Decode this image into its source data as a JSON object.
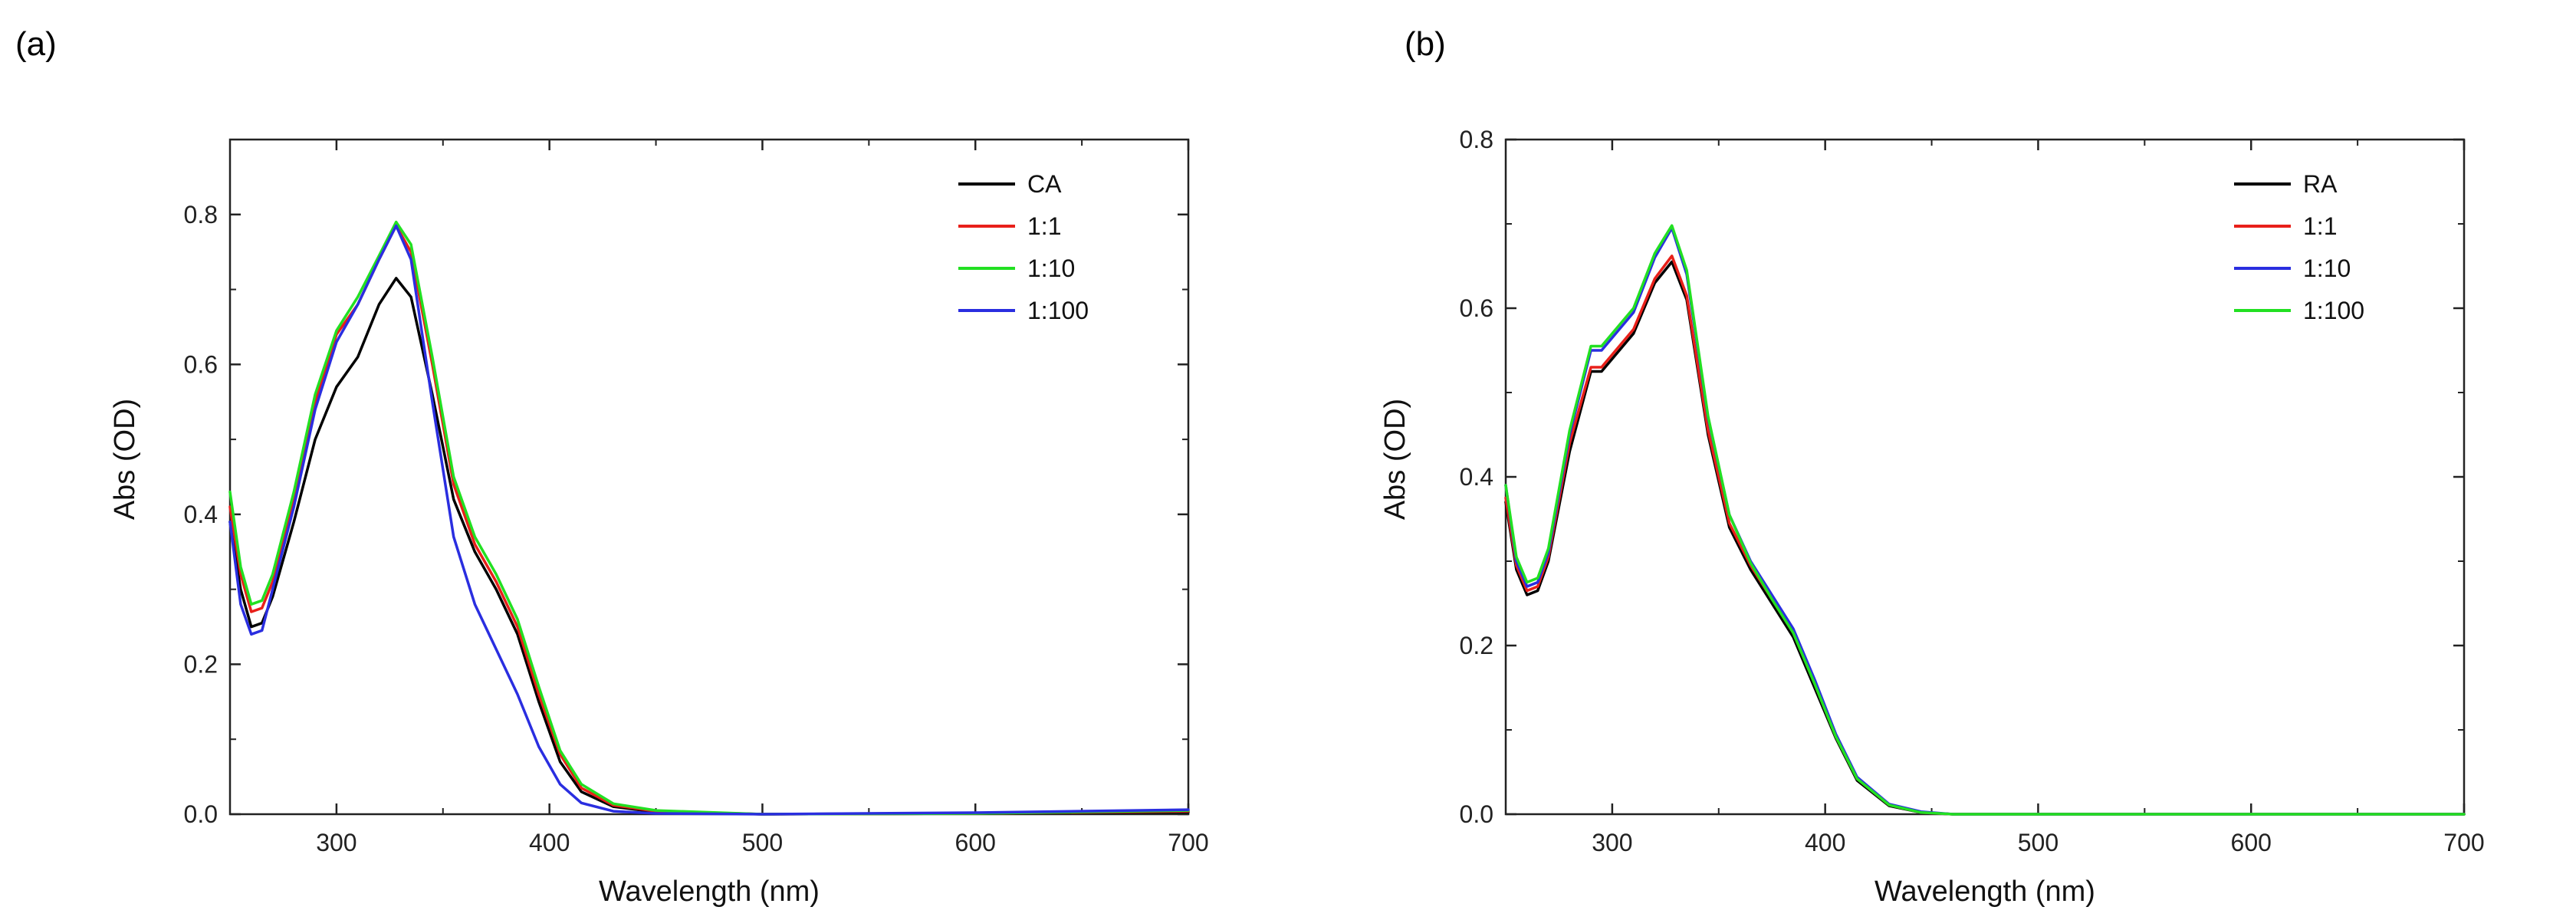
{
  "chart_data": [
    {
      "type": "line",
      "panel_label": "(a)",
      "xlabel": "Wavelength (nm)",
      "ylabel": "Abs (OD)",
      "xlim": [
        250,
        700
      ],
      "ylim": [
        0,
        0.9
      ],
      "xticks": [
        300,
        400,
        500,
        600,
        700
      ],
      "xtick_labels": [
        "300",
        "400",
        "500",
        "600",
        "700"
      ],
      "yticks": [
        0.0,
        0.2,
        0.4,
        0.6,
        0.8
      ],
      "ytick_labels": [
        "0.0",
        "0.2",
        "0.4",
        "0.6",
        "0.8"
      ],
      "grid": false,
      "legend_position": "top-right",
      "series": [
        {
          "name": "CA",
          "color": "#000000",
          "points": [
            [
              250,
              0.39
            ],
            [
              255,
              0.3
            ],
            [
              260,
              0.25
            ],
            [
              265,
              0.255
            ],
            [
              270,
              0.29
            ],
            [
              280,
              0.39
            ],
            [
              290,
              0.5
            ],
            [
              300,
              0.57
            ],
            [
              310,
              0.61
            ],
            [
              320,
              0.68
            ],
            [
              328,
              0.715
            ],
            [
              335,
              0.69
            ],
            [
              345,
              0.56
            ],
            [
              355,
              0.42
            ],
            [
              365,
              0.35
            ],
            [
              375,
              0.3
            ],
            [
              385,
              0.24
            ],
            [
              395,
              0.15
            ],
            [
              405,
              0.07
            ],
            [
              415,
              0.03
            ],
            [
              430,
              0.01
            ],
            [
              450,
              0.003
            ],
            [
              500,
              0.0
            ],
            [
              600,
              0.001
            ],
            [
              700,
              0.003
            ]
          ]
        },
        {
          "name": "1:1",
          "color": "#e8201a",
          "points": [
            [
              250,
              0.41
            ],
            [
              255,
              0.32
            ],
            [
              260,
              0.27
            ],
            [
              265,
              0.275
            ],
            [
              270,
              0.31
            ],
            [
              280,
              0.42
            ],
            [
              290,
              0.55
            ],
            [
              300,
              0.64
            ],
            [
              310,
              0.68
            ],
            [
              320,
              0.74
            ],
            [
              328,
              0.785
            ],
            [
              335,
              0.75
            ],
            [
              345,
              0.6
            ],
            [
              355,
              0.44
            ],
            [
              365,
              0.36
            ],
            [
              375,
              0.31
            ],
            [
              385,
              0.25
            ],
            [
              395,
              0.16
            ],
            [
              405,
              0.08
            ],
            [
              415,
              0.035
            ],
            [
              430,
              0.012
            ],
            [
              450,
              0.004
            ],
            [
              500,
              0.0
            ],
            [
              600,
              0.001
            ],
            [
              700,
              0.004
            ]
          ]
        },
        {
          "name": "1:10",
          "color": "#22e022",
          "points": [
            [
              250,
              0.43
            ],
            [
              255,
              0.33
            ],
            [
              260,
              0.28
            ],
            [
              265,
              0.285
            ],
            [
              270,
              0.32
            ],
            [
              280,
              0.43
            ],
            [
              290,
              0.56
            ],
            [
              300,
              0.645
            ],
            [
              310,
              0.69
            ],
            [
              320,
              0.745
            ],
            [
              328,
              0.79
            ],
            [
              335,
              0.76
            ],
            [
              345,
              0.61
            ],
            [
              355,
              0.45
            ],
            [
              365,
              0.37
            ],
            [
              375,
              0.32
            ],
            [
              385,
              0.26
            ],
            [
              395,
              0.17
            ],
            [
              405,
              0.085
            ],
            [
              415,
              0.04
            ],
            [
              430,
              0.014
            ],
            [
              450,
              0.005
            ],
            [
              500,
              0.0
            ],
            [
              600,
              0.001
            ],
            [
              700,
              0.005
            ]
          ]
        },
        {
          "name": "1:100",
          "color": "#2a2ee0",
          "points": [
            [
              250,
              0.39
            ],
            [
              255,
              0.28
            ],
            [
              260,
              0.24
            ],
            [
              265,
              0.245
            ],
            [
              270,
              0.3
            ],
            [
              280,
              0.41
            ],
            [
              290,
              0.54
            ],
            [
              300,
              0.63
            ],
            [
              310,
              0.68
            ],
            [
              320,
              0.74
            ],
            [
              328,
              0.785
            ],
            [
              335,
              0.74
            ],
            [
              345,
              0.55
            ],
            [
              355,
              0.37
            ],
            [
              365,
              0.28
            ],
            [
              375,
              0.22
            ],
            [
              385,
              0.16
            ],
            [
              395,
              0.09
            ],
            [
              405,
              0.04
            ],
            [
              415,
              0.015
            ],
            [
              430,
              0.004
            ],
            [
              450,
              0.001
            ],
            [
              500,
              0.0
            ],
            [
              600,
              0.002
            ],
            [
              700,
              0.006
            ]
          ]
        }
      ]
    },
    {
      "type": "line",
      "panel_label": "(b)",
      "xlabel": "Wavelength (nm)",
      "ylabel": "Abs (OD)",
      "xlim": [
        250,
        700
      ],
      "ylim": [
        0,
        0.8
      ],
      "xticks": [
        300,
        400,
        500,
        600,
        700
      ],
      "xtick_labels": [
        "300",
        "400",
        "500",
        "600",
        "700"
      ],
      "yticks": [
        0.0,
        0.2,
        0.4,
        0.6,
        0.8
      ],
      "ytick_labels": [
        "0.0",
        "0.2",
        "0.4",
        "0.6",
        "0.8"
      ],
      "grid": false,
      "legend_position": "top-right",
      "series": [
        {
          "name": "RA",
          "color": "#000000",
          "points": [
            [
              250,
              0.37
            ],
            [
              255,
              0.29
            ],
            [
              260,
              0.26
            ],
            [
              265,
              0.265
            ],
            [
              270,
              0.3
            ],
            [
              280,
              0.43
            ],
            [
              290,
              0.525
            ],
            [
              295,
              0.525
            ],
            [
              300,
              0.54
            ],
            [
              310,
              0.57
            ],
            [
              320,
              0.63
            ],
            [
              328,
              0.655
            ],
            [
              335,
              0.61
            ],
            [
              345,
              0.45
            ],
            [
              355,
              0.34
            ],
            [
              365,
              0.29
            ],
            [
              375,
              0.25
            ],
            [
              385,
              0.21
            ],
            [
              395,
              0.15
            ],
            [
              405,
              0.09
            ],
            [
              415,
              0.04
            ],
            [
              430,
              0.01
            ],
            [
              445,
              0.002
            ],
            [
              460,
              0.0
            ],
            [
              700,
              0.0
            ]
          ]
        },
        {
          "name": "1:1",
          "color": "#e8201a",
          "points": [
            [
              250,
              0.375
            ],
            [
              255,
              0.295
            ],
            [
              260,
              0.265
            ],
            [
              265,
              0.27
            ],
            [
              270,
              0.305
            ],
            [
              280,
              0.44
            ],
            [
              290,
              0.53
            ],
            [
              295,
              0.53
            ],
            [
              300,
              0.545
            ],
            [
              310,
              0.575
            ],
            [
              320,
              0.635
            ],
            [
              328,
              0.662
            ],
            [
              335,
              0.615
            ],
            [
              345,
              0.455
            ],
            [
              355,
              0.345
            ],
            [
              365,
              0.295
            ],
            [
              375,
              0.255
            ],
            [
              385,
              0.215
            ],
            [
              395,
              0.155
            ],
            [
              405,
              0.092
            ],
            [
              415,
              0.042
            ],
            [
              430,
              0.011
            ],
            [
              445,
              0.002
            ],
            [
              460,
              0.0
            ],
            [
              700,
              0.0
            ]
          ]
        },
        {
          "name": "1:10",
          "color": "#2a2ee0",
          "points": [
            [
              250,
              0.39
            ],
            [
              255,
              0.3
            ],
            [
              260,
              0.27
            ],
            [
              265,
              0.275
            ],
            [
              270,
              0.31
            ],
            [
              280,
              0.45
            ],
            [
              290,
              0.55
            ],
            [
              295,
              0.55
            ],
            [
              300,
              0.565
            ],
            [
              310,
              0.595
            ],
            [
              320,
              0.66
            ],
            [
              328,
              0.695
            ],
            [
              335,
              0.64
            ],
            [
              345,
              0.47
            ],
            [
              355,
              0.355
            ],
            [
              365,
              0.3
            ],
            [
              375,
              0.26
            ],
            [
              385,
              0.22
            ],
            [
              395,
              0.16
            ],
            [
              405,
              0.095
            ],
            [
              415,
              0.044
            ],
            [
              430,
              0.012
            ],
            [
              445,
              0.003
            ],
            [
              460,
              0.0
            ],
            [
              700,
              0.0
            ]
          ]
        },
        {
          "name": "1:100",
          "color": "#22e022",
          "points": [
            [
              250,
              0.39
            ],
            [
              255,
              0.305
            ],
            [
              260,
              0.275
            ],
            [
              265,
              0.28
            ],
            [
              270,
              0.315
            ],
            [
              280,
              0.455
            ],
            [
              290,
              0.555
            ],
            [
              295,
              0.555
            ],
            [
              300,
              0.57
            ],
            [
              310,
              0.6
            ],
            [
              320,
              0.665
            ],
            [
              328,
              0.698
            ],
            [
              335,
              0.645
            ],
            [
              345,
              0.472
            ],
            [
              355,
              0.355
            ],
            [
              365,
              0.298
            ],
            [
              375,
              0.255
            ],
            [
              385,
              0.215
            ],
            [
              395,
              0.155
            ],
            [
              405,
              0.092
            ],
            [
              415,
              0.042
            ],
            [
              430,
              0.011
            ],
            [
              445,
              0.002
            ],
            [
              460,
              0.0
            ],
            [
              700,
              0.0
            ]
          ]
        }
      ]
    }
  ]
}
